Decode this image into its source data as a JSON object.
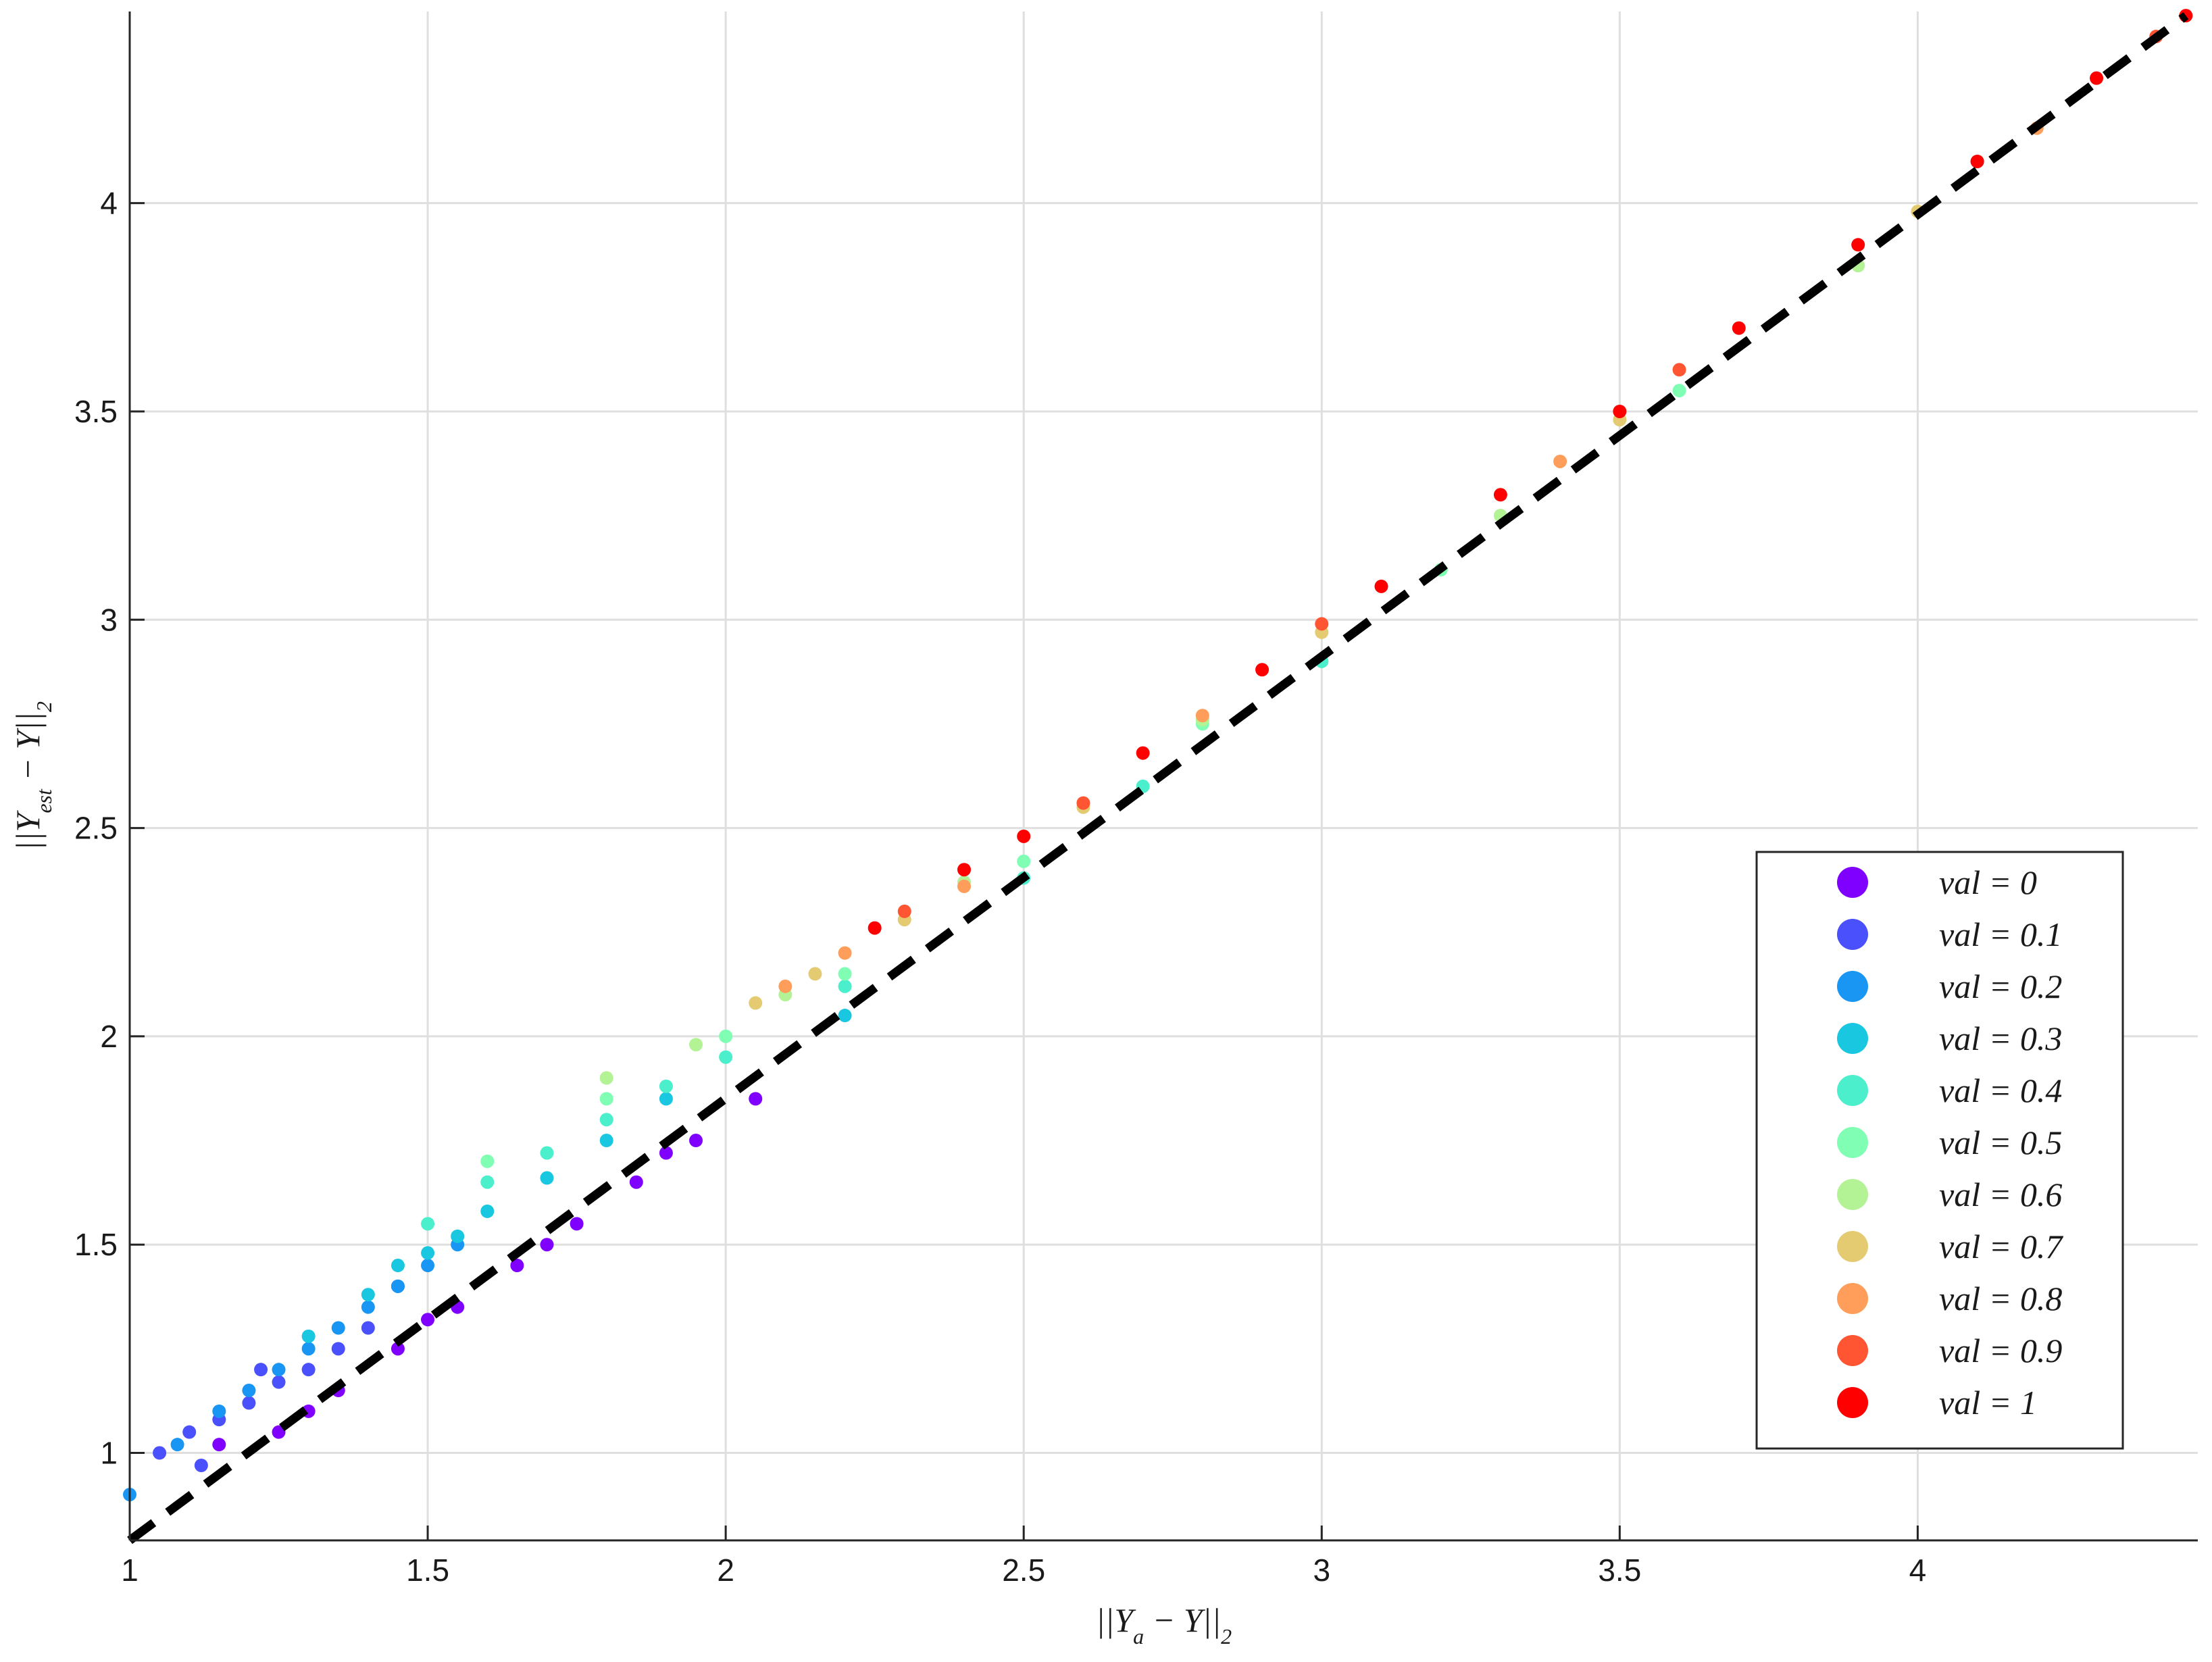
{
  "chart_data": {
    "type": "scatter",
    "xlabel": [
      {
        "text": "||Y"
      },
      {
        "text": "a",
        "sub": true
      },
      {
        "text": " − Y||"
      },
      {
        "text": "2",
        "sub": true
      }
    ],
    "ylabel": [
      {
        "text": "||Y"
      },
      {
        "text": "est",
        "sub": true
      },
      {
        "text": " − Y||"
      },
      {
        "text": "2",
        "sub": true
      }
    ],
    "xlim": [
      1,
      4.47
    ],
    "ylim": [
      0.79,
      4.46
    ],
    "xticks": [
      1,
      1.5,
      2,
      2.5,
      3,
      3.5,
      4
    ],
    "yticks": [
      1,
      1.5,
      2,
      2.5,
      3,
      3.5,
      4
    ],
    "grid": true,
    "legend": "lower-right",
    "reference_line": {
      "x": [
        1,
        4.45
      ],
      "y": [
        0.79,
        4.45
      ],
      "color": "#000000"
    },
    "series": [
      {
        "name": "val = 0",
        "color": "#7f00ff",
        "x": [
          1.15,
          1.25,
          1.3,
          1.35,
          1.45,
          1.5,
          1.55,
          1.65,
          1.7,
          1.75,
          1.85,
          1.9,
          1.95,
          2.05
        ],
        "y": [
          1.02,
          1.05,
          1.1,
          1.15,
          1.25,
          1.32,
          1.35,
          1.45,
          1.5,
          1.55,
          1.65,
          1.72,
          1.75,
          1.85
        ]
      },
      {
        "name": "val = 0.1",
        "color": "#4a50fb",
        "x": [
          1.05,
          1.1,
          1.12,
          1.15,
          1.2,
          1.22,
          1.25,
          1.3,
          1.35,
          1.4,
          1.45
        ],
        "y": [
          1.0,
          1.05,
          0.97,
          1.08,
          1.12,
          1.2,
          1.17,
          1.2,
          1.25,
          1.3,
          1.4
        ]
      },
      {
        "name": "val = 0.2",
        "color": "#1996f3",
        "x": [
          1.0,
          1.08,
          1.15,
          1.2,
          1.25,
          1.3,
          1.35,
          1.4,
          1.45,
          1.5,
          1.55
        ],
        "y": [
          0.9,
          1.02,
          1.1,
          1.15,
          1.2,
          1.25,
          1.3,
          1.35,
          1.4,
          1.45,
          1.5
        ]
      },
      {
        "name": "val = 0.3",
        "color": "#1ac7e0",
        "x": [
          1.3,
          1.4,
          1.45,
          1.5,
          1.55,
          1.6,
          1.7,
          1.8,
          1.9,
          2.2
        ],
        "y": [
          1.28,
          1.38,
          1.45,
          1.48,
          1.52,
          1.58,
          1.66,
          1.75,
          1.85,
          2.05
        ]
      },
      {
        "name": "val = 0.4",
        "color": "#4cefcb",
        "x": [
          1.5,
          1.6,
          1.7,
          1.8,
          1.9,
          2.0,
          2.2,
          2.5,
          2.7,
          3.0
        ],
        "y": [
          1.55,
          1.65,
          1.72,
          1.8,
          1.88,
          1.95,
          2.12,
          2.38,
          2.6,
          2.9
        ]
      },
      {
        "name": "val = 0.5",
        "color": "#80ffb4",
        "x": [
          1.6,
          1.8,
          2.0,
          2.2,
          2.5,
          2.8,
          3.2,
          3.6
        ],
        "y": [
          1.7,
          1.85,
          2.0,
          2.15,
          2.42,
          2.75,
          3.12,
          3.55
        ]
      },
      {
        "name": "val = 0.6",
        "color": "#b3f396",
        "x": [
          1.8,
          1.95,
          2.1,
          2.4,
          2.8,
          3.3,
          3.9
        ],
        "y": [
          1.9,
          1.98,
          2.1,
          2.37,
          2.76,
          3.25,
          3.85
        ]
      },
      {
        "name": "val = 0.7",
        "color": "#e4cb72",
        "x": [
          2.05,
          2.15,
          2.3,
          2.6,
          3.0,
          3.5,
          4.0
        ],
        "y": [
          2.08,
          2.15,
          2.28,
          2.55,
          2.97,
          3.48,
          3.98
        ]
      },
      {
        "name": "val = 0.8",
        "color": "#ff9e5a",
        "x": [
          2.1,
          2.2,
          2.4,
          2.8,
          3.4,
          4.2
        ],
        "y": [
          2.12,
          2.2,
          2.36,
          2.77,
          3.38,
          4.18
        ]
      },
      {
        "name": "val = 0.9",
        "color": "#ff5533",
        "x": [
          2.3,
          2.6,
          3.0,
          3.6,
          4.1,
          4.4
        ],
        "y": [
          2.3,
          2.56,
          2.99,
          3.6,
          4.1,
          4.4
        ]
      },
      {
        "name": "val = 1",
        "color": "#ff0000",
        "x": [
          2.25,
          2.4,
          2.5,
          2.7,
          2.9,
          3.1,
          3.3,
          3.5,
          3.7,
          3.9,
          4.1,
          4.3,
          4.45
        ],
        "y": [
          2.26,
          2.4,
          2.48,
          2.68,
          2.88,
          3.08,
          3.3,
          3.5,
          3.7,
          3.9,
          4.1,
          4.3,
          4.45
        ]
      }
    ]
  }
}
